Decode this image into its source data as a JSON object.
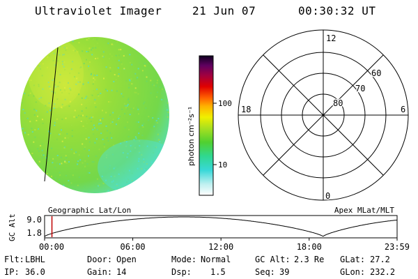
{
  "header": {
    "title": "Ultraviolet Imager",
    "date": "21 Jun 07",
    "time": "00:30:32 UT"
  },
  "colorbar": {
    "unit_label": "photon cm⁻²s⁻¹",
    "ticks": [
      {
        "label": "100",
        "value": 100
      },
      {
        "label": "10",
        "value": 10
      }
    ]
  },
  "polar_plot": {
    "rings": [
      {
        "label": "80",
        "lat": 80
      },
      {
        "label": "70",
        "lat": 70
      },
      {
        "label": "60",
        "lat": 60
      }
    ],
    "mlt_labels": {
      "top": "12",
      "left": "18",
      "right": "6",
      "bottom": "0"
    }
  },
  "timeline": {
    "ylabel": "GC Alt",
    "yticks": [
      "9.0",
      "1.8"
    ],
    "left_label": "Geographic Lat/Lon",
    "right_label": "Apex MLat/MLT",
    "xticks": [
      "00:00",
      "06:00",
      "12:00",
      "18:00",
      "23:59"
    ],
    "current_marker_time": "00:30"
  },
  "status": {
    "row1": [
      {
        "key": "Flt:",
        "value": "LBHL"
      },
      {
        "key": "Door:",
        "value": "Open"
      },
      {
        "key": "Mode:",
        "value": "Normal"
      },
      {
        "key": "GC Alt:",
        "value": "2.3 Re"
      },
      {
        "key": "GLat:",
        "value": "27.2"
      }
    ],
    "row2": [
      {
        "key": "IP:",
        "value": "36.0"
      },
      {
        "key": "Gain:",
        "value": "14"
      },
      {
        "key": "Dsp:",
        "value": "1.5"
      },
      {
        "key": "Seq:",
        "value": "39"
      },
      {
        "key": "GLon:",
        "value": "232.2"
      }
    ]
  },
  "colors": {
    "disk_main": "#8edc3c",
    "disk_bright": "#c8e83c",
    "disk_cyan": "#4ee0d4",
    "marker": "#c00000"
  }
}
